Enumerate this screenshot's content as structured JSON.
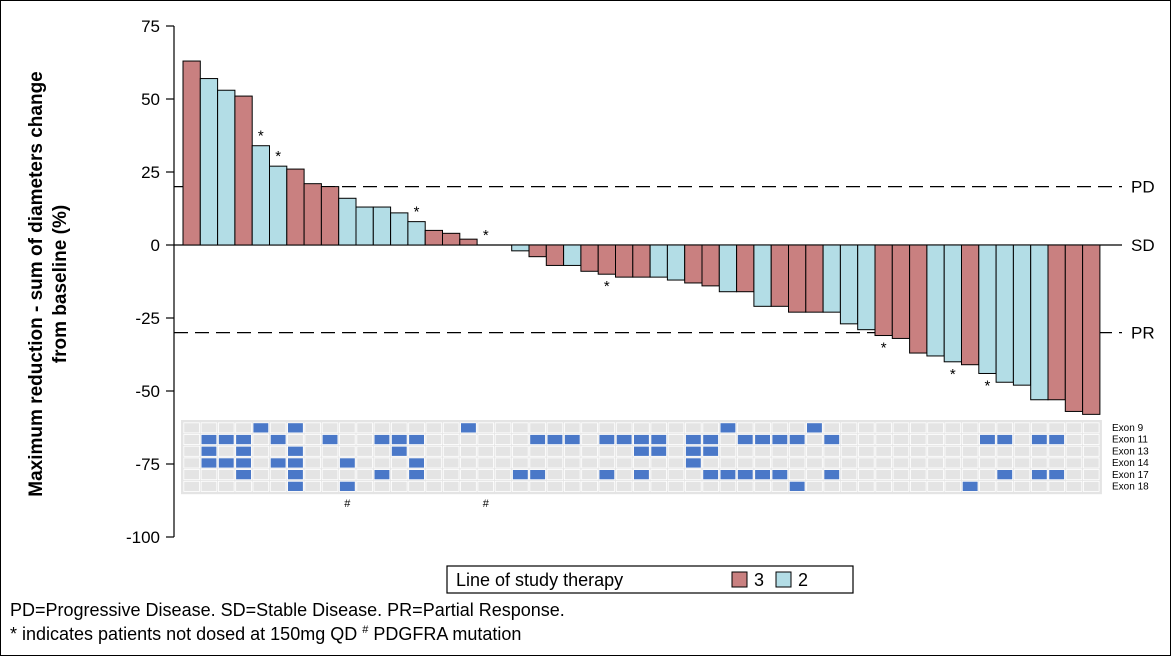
{
  "chart_data": {
    "type": "bar",
    "ylabel_line1": "Maximum reduction - sum of diameters change",
    "ylabel_line2": "from baseline (%)",
    "yticks": [
      75,
      50,
      25,
      0,
      -25,
      -50,
      -75,
      -100
    ],
    "ylim": [
      -100,
      75
    ],
    "reference_lines": [
      {
        "label": "PD",
        "value": 20,
        "style": "dashed"
      },
      {
        "label": "SD",
        "value": 0,
        "style": "solid"
      },
      {
        "label": "PR",
        "value": -30,
        "style": "dashed"
      }
    ],
    "colors": {
      "3": "#c98080",
      "2": "#b3dde6",
      "mutation": "#4a78c8",
      "empty": "#e4e4e4"
    },
    "bars": [
      {
        "value": 63,
        "line": "3"
      },
      {
        "value": 57,
        "line": "2"
      },
      {
        "value": 53,
        "line": "2"
      },
      {
        "value": 51,
        "line": "3"
      },
      {
        "value": 34,
        "line": "2",
        "asterisk": true
      },
      {
        "value": 27,
        "line": "2",
        "asterisk": true
      },
      {
        "value": 26,
        "line": "3"
      },
      {
        "value": 21,
        "line": "3"
      },
      {
        "value": 20,
        "line": "3"
      },
      {
        "value": 16,
        "line": "2"
      },
      {
        "value": 13,
        "line": "2"
      },
      {
        "value": 13,
        "line": "2"
      },
      {
        "value": 11,
        "line": "2"
      },
      {
        "value": 8,
        "line": "2",
        "asterisk": true
      },
      {
        "value": 5,
        "line": "3"
      },
      {
        "value": 4,
        "line": "3"
      },
      {
        "value": 2,
        "line": "3"
      },
      {
        "value": 0,
        "line": "3",
        "asterisk": true
      },
      {
        "value": 0,
        "line": "2"
      },
      {
        "value": -2,
        "line": "2"
      },
      {
        "value": -4,
        "line": "3"
      },
      {
        "value": -7,
        "line": "3"
      },
      {
        "value": -7,
        "line": "2"
      },
      {
        "value": -9,
        "line": "3"
      },
      {
        "value": -10,
        "line": "3",
        "asterisk": true
      },
      {
        "value": -11,
        "line": "3"
      },
      {
        "value": -11,
        "line": "3"
      },
      {
        "value": -11,
        "line": "2"
      },
      {
        "value": -12,
        "line": "2"
      },
      {
        "value": -13,
        "line": "3"
      },
      {
        "value": -14,
        "line": "3"
      },
      {
        "value": -16,
        "line": "2"
      },
      {
        "value": -16,
        "line": "3"
      },
      {
        "value": -21,
        "line": "2"
      },
      {
        "value": -21,
        "line": "3"
      },
      {
        "value": -23,
        "line": "3"
      },
      {
        "value": -23,
        "line": "3"
      },
      {
        "value": -23,
        "line": "2"
      },
      {
        "value": -27,
        "line": "2"
      },
      {
        "value": -29,
        "line": "2"
      },
      {
        "value": -31,
        "line": "3",
        "asterisk": true
      },
      {
        "value": -32,
        "line": "3"
      },
      {
        "value": -37,
        "line": "3"
      },
      {
        "value": -38,
        "line": "2"
      },
      {
        "value": -40,
        "line": "2",
        "asterisk": true
      },
      {
        "value": -41,
        "line": "3"
      },
      {
        "value": -44,
        "line": "2",
        "asterisk": true
      },
      {
        "value": -47,
        "line": "2"
      },
      {
        "value": -48,
        "line": "2"
      },
      {
        "value": -53,
        "line": "2"
      },
      {
        "value": -53,
        "line": "3"
      },
      {
        "value": -57,
        "line": "3"
      },
      {
        "value": -58,
        "line": "3"
      }
    ],
    "exons": [
      "Exon 9",
      "Exon 11",
      "Exon 13",
      "Exon 14",
      "Exon 17",
      "Exon 18"
    ],
    "mutations": [
      [
        [
          4,
          6,
          16,
          31,
          36
        ]
      ],
      [
        [
          1,
          2,
          3,
          5,
          8,
          11,
          12,
          13,
          20,
          21,
          22,
          24,
          25,
          26,
          27,
          29,
          30,
          32,
          33,
          34,
          35,
          37,
          46,
          47,
          49,
          50
        ]
      ],
      [
        [
          1,
          3,
          6,
          12,
          26,
          27,
          29,
          30
        ]
      ],
      [
        [
          1,
          2,
          3,
          5,
          6,
          9,
          13,
          29
        ]
      ],
      [
        [
          3,
          6,
          11,
          13,
          19,
          20,
          24,
          26,
          30,
          31,
          32,
          33,
          34,
          37,
          47,
          49,
          50
        ]
      ],
      [
        [
          6,
          9,
          35,
          45
        ]
      ]
    ],
    "hash_markers": [
      9,
      17
    ],
    "hash_symbol": "#",
    "asterisk_symbol": "*"
  },
  "legend": {
    "title": "Line of study therapy",
    "items": [
      {
        "label": "3",
        "key": "3"
      },
      {
        "label": "2",
        "key": "2"
      }
    ]
  },
  "footnotes": {
    "line1": "PD=Progressive Disease. SD=Stable Disease. PR=Partial Response.",
    "line2a": "* indicates patients not dosed at 150mg QD ",
    "line2sup": "#",
    "line2b": " PDGFRA mutation"
  }
}
